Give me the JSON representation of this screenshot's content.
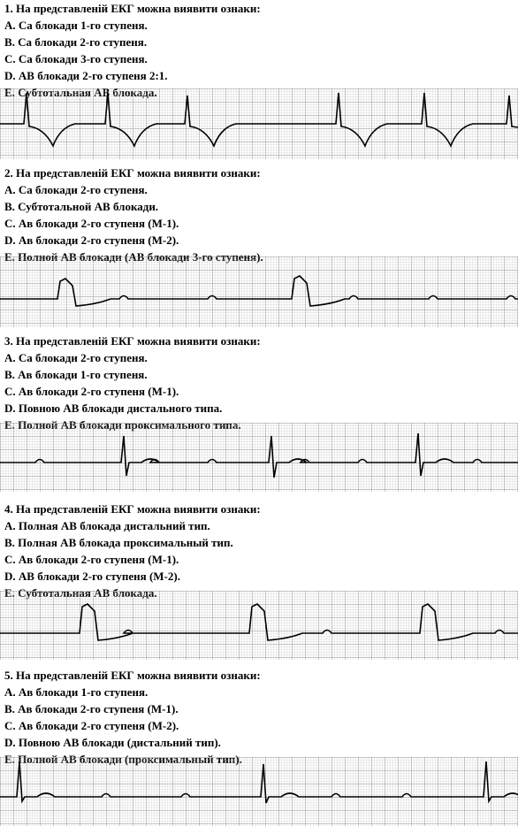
{
  "questions": [
    {
      "title": "1. На представленій ЕКГ можна виявити ознаки:",
      "options": [
        "A. Са блокади 1-го ступеня.",
        "B. Са блокади 2-го ступеня.",
        "C. Са блокади 3-го ступеня.",
        "D. АВ блокади 2-го ступеня 2:1.",
        "E. Субтотальная АВ блокада."
      ]
    },
    {
      "title": "2. На представленій ЕКГ можна виявити ознаки:",
      "options": [
        "A. Са блокади 2-го ступеня.",
        "B. Субтотальной АВ блокади.",
        "C. Ав блокади 2-го ступеня (М-1).",
        "D. Ав блокади 2-го ступеня (М-2).",
        "E. Полной АВ блокади (АВ блокади 3-го ступеня)."
      ]
    },
    {
      "title": "3. На представленій ЕКГ можна виявити ознаки:",
      "options": [
        "A. Са блокади 2-го ступеня.",
        "B. Ав блокади 1-го ступеня.",
        "C. Ав блокади 2-го ступеня (М-1).",
        "D. Повною АВ блокади дистального типа.",
        "E. Полной АВ блокади проксимального типа."
      ]
    },
    {
      "title": "4. На представленій ЕКГ можна виявити ознаки:",
      "options": [
        "A. Полная АВ блокада дистальний тип.",
        "B. Полная АВ блокада проксимальный тип.",
        "C. Ав блокади 2-го ступеня (М-1).",
        "D. АВ блокади 2-го ступеня (М-2).",
        "E. Субтотальная АВ блокада."
      ]
    },
    {
      "title": "5. На представленій ЕКГ можна виявити ознаки:",
      "options": [
        "A. Ав блокади 1-го ступеня.",
        "B. Ав блокади 2-го ступеня (М-1).",
        "C. Ав блокади 2-го ступеня (М-2).",
        "D. Повною АВ блокади (дистальний тип).",
        "E. Полной АВ блокади (проксимальный тип)."
      ]
    }
  ]
}
